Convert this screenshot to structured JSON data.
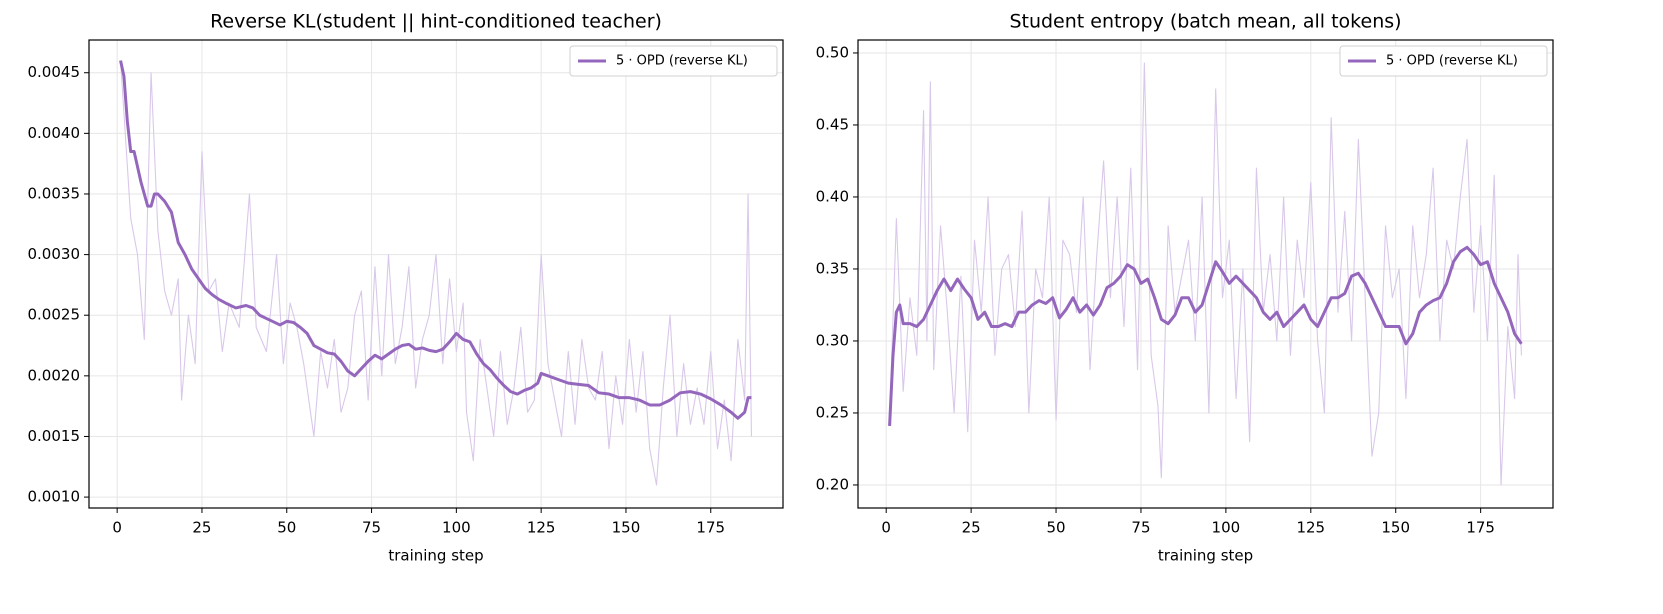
{
  "chart_data": [
    {
      "type": "line",
      "title": "Reverse KL(student || hint-conditioned teacher)",
      "xlabel": "training step",
      "xlim": [
        -8.3,
        196.3
      ],
      "xticks": [
        0,
        25,
        50,
        75,
        100,
        125,
        150,
        175
      ],
      "ylim": [
        0.00091,
        0.00477
      ],
      "yticks": [
        {
          "value": 0.001,
          "label": "0.0010"
        },
        {
          "value": 0.0015,
          "label": "0.0015"
        },
        {
          "value": 0.002,
          "label": "0.0020"
        },
        {
          "value": 0.0025,
          "label": "0.0025"
        },
        {
          "value": 0.003,
          "label": "0.0030"
        },
        {
          "value": 0.0035,
          "label": "0.0035"
        },
        {
          "value": 0.004,
          "label": "0.0040"
        },
        {
          "value": 0.0045,
          "label": "0.0045"
        }
      ],
      "grid": true,
      "legend": "upper right",
      "series": [
        {
          "color": "#d9c8ea",
          "x": [
            1,
            4,
            6,
            8,
            10,
            12,
            14,
            16,
            18,
            19,
            21,
            23,
            25,
            27,
            29,
            31,
            33,
            36,
            39,
            41,
            44,
            47,
            49,
            51,
            53,
            55,
            58,
            60,
            62,
            64,
            66,
            68,
            70,
            72,
            74,
            76,
            78,
            80,
            82,
            84,
            86,
            88,
            90,
            92,
            94,
            96,
            98,
            100,
            102,
            103,
            105,
            107,
            109,
            111,
            113,
            115,
            117,
            119,
            121,
            123,
            125,
            127,
            129,
            131,
            133,
            135,
            137,
            139,
            141,
            143,
            145,
            147,
            149,
            151,
            153,
            155,
            157,
            159,
            161,
            163,
            165,
            167,
            169,
            171,
            173,
            175,
            177,
            179,
            181,
            183,
            185,
            186,
            187
          ],
          "values": [
            0.0046,
            0.0033,
            0.003,
            0.0023,
            0.0045,
            0.0032,
            0.0027,
            0.0025,
            0.0028,
            0.0018,
            0.0025,
            0.0021,
            0.00385,
            0.0027,
            0.0028,
            0.0022,
            0.0026,
            0.0024,
            0.0035,
            0.0024,
            0.0022,
            0.003,
            0.0021,
            0.0026,
            0.0024,
            0.0021,
            0.0015,
            0.0022,
            0.0019,
            0.0023,
            0.0017,
            0.0019,
            0.0025,
            0.0027,
            0.0018,
            0.0029,
            0.002,
            0.003,
            0.0021,
            0.0024,
            0.0029,
            0.0019,
            0.0023,
            0.0025,
            0.003,
            0.0021,
            0.0028,
            0.0022,
            0.0026,
            0.0017,
            0.0013,
            0.0023,
            0.0019,
            0.0015,
            0.0022,
            0.0016,
            0.0019,
            0.0024,
            0.0017,
            0.0018,
            0.003,
            0.0021,
            0.0018,
            0.0015,
            0.0022,
            0.0016,
            0.0023,
            0.0019,
            0.0018,
            0.0022,
            0.0014,
            0.002,
            0.0016,
            0.0023,
            0.0017,
            0.0022,
            0.0014,
            0.0011,
            0.0019,
            0.0025,
            0.0015,
            0.0021,
            0.0016,
            0.0019,
            0.0016,
            0.0022,
            0.0014,
            0.0018,
            0.0013,
            0.0023,
            0.0018,
            0.0035,
            0.0015
          ]
        },
        {
          "name": "5 · OPD (reverse KL)",
          "color": "#9467bd",
          "x": [
            1,
            2,
            3,
            4,
            5,
            7,
            9,
            10,
            11,
            12,
            14,
            16,
            18,
            20,
            22,
            24,
            26,
            28,
            30,
            32,
            35,
            38,
            40,
            42,
            45,
            48,
            50,
            52,
            54,
            56,
            58,
            60,
            62,
            64,
            66,
            68,
            70,
            72,
            74,
            76,
            78,
            80,
            82,
            84,
            86,
            88,
            90,
            92,
            94,
            96,
            98,
            100,
            102,
            104,
            106,
            108,
            110,
            112,
            114,
            116,
            118,
            120,
            122,
            124,
            125,
            127,
            130,
            133,
            136,
            139,
            142,
            145,
            148,
            151,
            154,
            157,
            160,
            163,
            166,
            169,
            172,
            175,
            178,
            181,
            183,
            185,
            186,
            187
          ],
          "values": [
            0.0046,
            0.00447,
            0.0041,
            0.00385,
            0.00385,
            0.0036,
            0.0034,
            0.0034,
            0.0035,
            0.0035,
            0.00344,
            0.00335,
            0.0031,
            0.003,
            0.00288,
            0.0028,
            0.00272,
            0.00267,
            0.00263,
            0.0026,
            0.00256,
            0.00258,
            0.00256,
            0.0025,
            0.00246,
            0.00242,
            0.00245,
            0.00244,
            0.0024,
            0.00235,
            0.00225,
            0.00222,
            0.00219,
            0.00218,
            0.00212,
            0.00204,
            0.002,
            0.00206,
            0.00212,
            0.00217,
            0.00214,
            0.00218,
            0.00222,
            0.00225,
            0.00226,
            0.00222,
            0.00223,
            0.00221,
            0.0022,
            0.00222,
            0.00228,
            0.00235,
            0.0023,
            0.00228,
            0.00218,
            0.0021,
            0.00205,
            0.00198,
            0.00192,
            0.00187,
            0.00185,
            0.00188,
            0.0019,
            0.00194,
            0.00202,
            0.002,
            0.00197,
            0.00194,
            0.00193,
            0.00192,
            0.00186,
            0.00185,
            0.00182,
            0.00182,
            0.0018,
            0.00176,
            0.00176,
            0.0018,
            0.00186,
            0.00187,
            0.00185,
            0.00181,
            0.00176,
            0.0017,
            0.00165,
            0.0017,
            0.00182,
            0.00182
          ]
        }
      ]
    },
    {
      "type": "line",
      "title": "Student entropy (batch mean, all tokens)",
      "xlabel": "training step",
      "xlim": [
        -8.3,
        196.3
      ],
      "xticks": [
        0,
        25,
        50,
        75,
        100,
        125,
        150,
        175
      ],
      "ylim": [
        0.184,
        0.509
      ],
      "yticks": [
        {
          "value": 0.2,
          "label": "0.20"
        },
        0.25,
        {
          "value": 0.3,
          "label": "0.30"
        },
        0.35,
        {
          "value": 0.4,
          "label": "0.40"
        },
        0.45,
        {
          "value": 0.5,
          "label": "0.50"
        }
      ],
      "grid": true,
      "legend": "upper right",
      "series": [
        {
          "color": "#d9c8ea",
          "x": [
            1,
            3,
            5,
            7,
            9,
            11,
            12,
            13,
            14,
            16,
            18,
            20,
            22,
            24,
            26,
            28,
            30,
            32,
            34,
            36,
            38,
            40,
            42,
            44,
            46,
            48,
            50,
            52,
            54,
            56,
            58,
            60,
            62,
            64,
            66,
            68,
            70,
            72,
            74,
            76,
            78,
            80,
            81,
            83,
            85,
            87,
            89,
            91,
            93,
            95,
            97,
            99,
            101,
            103,
            105,
            107,
            109,
            111,
            113,
            115,
            117,
            119,
            121,
            123,
            125,
            127,
            129,
            131,
            133,
            135,
            137,
            139,
            141,
            143,
            145,
            147,
            149,
            151,
            153,
            155,
            157,
            159,
            161,
            163,
            165,
            167,
            169,
            171,
            173,
            175,
            177,
            179,
            181,
            183,
            185,
            186,
            187
          ],
          "values": [
            0.245,
            0.385,
            0.265,
            0.33,
            0.29,
            0.46,
            0.3,
            0.48,
            0.28,
            0.38,
            0.32,
            0.25,
            0.345,
            0.237,
            0.37,
            0.32,
            0.4,
            0.29,
            0.35,
            0.36,
            0.31,
            0.39,
            0.25,
            0.35,
            0.33,
            0.4,
            0.245,
            0.37,
            0.36,
            0.32,
            0.4,
            0.28,
            0.36,
            0.425,
            0.33,
            0.4,
            0.31,
            0.42,
            0.28,
            0.493,
            0.29,
            0.255,
            0.205,
            0.38,
            0.32,
            0.345,
            0.37,
            0.3,
            0.4,
            0.25,
            0.475,
            0.33,
            0.37,
            0.26,
            0.35,
            0.23,
            0.42,
            0.32,
            0.36,
            0.3,
            0.4,
            0.29,
            0.37,
            0.33,
            0.41,
            0.3,
            0.25,
            0.455,
            0.32,
            0.39,
            0.3,
            0.44,
            0.33,
            0.22,
            0.25,
            0.38,
            0.33,
            0.35,
            0.26,
            0.38,
            0.33,
            0.36,
            0.42,
            0.3,
            0.37,
            0.35,
            0.4,
            0.44,
            0.32,
            0.38,
            0.3,
            0.415,
            0.2,
            0.31,
            0.26,
            0.36,
            0.29
          ]
        },
        {
          "name": "5 · OPD (reverse KL)",
          "color": "#9467bd",
          "x": [
            1,
            2,
            3,
            4,
            5,
            7,
            9,
            11,
            13,
            15,
            17,
            19,
            21,
            23,
            25,
            27,
            29,
            31,
            33,
            35,
            37,
            39,
            41,
            43,
            45,
            47,
            49,
            51,
            53,
            55,
            57,
            59,
            61,
            63,
            65,
            67,
            69,
            71,
            73,
            75,
            77,
            79,
            81,
            83,
            85,
            87,
            89,
            91,
            93,
            95,
            97,
            99,
            101,
            103,
            105,
            107,
            109,
            111,
            113,
            115,
            117,
            119,
            121,
            123,
            125,
            127,
            129,
            131,
            133,
            135,
            137,
            139,
            141,
            143,
            145,
            147,
            149,
            151,
            153,
            155,
            157,
            159,
            161,
            163,
            165,
            167,
            169,
            171,
            173,
            175,
            177,
            179,
            181,
            183,
            185,
            187
          ],
          "values": [
            0.241,
            0.29,
            0.32,
            0.325,
            0.312,
            0.312,
            0.31,
            0.315,
            0.325,
            0.335,
            0.343,
            0.335,
            0.343,
            0.336,
            0.33,
            0.315,
            0.32,
            0.31,
            0.31,
            0.312,
            0.31,
            0.32,
            0.32,
            0.325,
            0.328,
            0.326,
            0.33,
            0.316,
            0.322,
            0.33,
            0.32,
            0.325,
            0.318,
            0.325,
            0.337,
            0.34,
            0.345,
            0.353,
            0.35,
            0.34,
            0.343,
            0.33,
            0.315,
            0.312,
            0.318,
            0.33,
            0.33,
            0.32,
            0.325,
            0.34,
            0.355,
            0.348,
            0.34,
            0.345,
            0.34,
            0.335,
            0.33,
            0.32,
            0.315,
            0.32,
            0.31,
            0.315,
            0.32,
            0.325,
            0.315,
            0.31,
            0.32,
            0.33,
            0.33,
            0.333,
            0.345,
            0.347,
            0.34,
            0.33,
            0.32,
            0.31,
            0.31,
            0.31,
            0.298,
            0.305,
            0.32,
            0.325,
            0.328,
            0.33,
            0.34,
            0.355,
            0.362,
            0.365,
            0.36,
            0.353,
            0.355,
            0.34,
            0.33,
            0.32,
            0.305,
            0.298
          ]
        }
      ]
    }
  ]
}
